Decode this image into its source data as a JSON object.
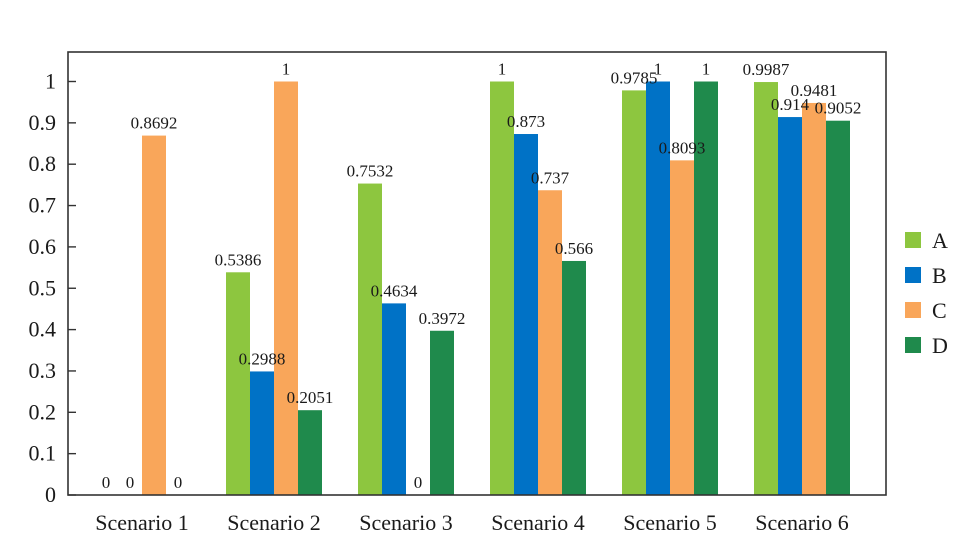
{
  "chart_data": {
    "type": "bar",
    "categories": [
      "Scenario 1",
      "Scenario 2",
      "Scenario 3",
      "Scenario 4",
      "Scenario 5",
      "Scenario 6"
    ],
    "series": [
      {
        "name": "A",
        "color": "#8dc63f",
        "values": [
          0,
          0.5386,
          0.7532,
          1,
          0.9785,
          0.9987
        ],
        "labels": [
          "0",
          "0.5386",
          "0.7532",
          "1",
          "0.9785",
          "0.9987"
        ]
      },
      {
        "name": "B",
        "color": "#0072c6",
        "values": [
          0,
          0.2988,
          0.4634,
          0.873,
          1,
          0.914
        ],
        "labels": [
          "0",
          "0.2988",
          "0.4634",
          "0.873",
          "1",
          "0.914"
        ]
      },
      {
        "name": "C",
        "color": "#f9a65a",
        "values": [
          0.8692,
          1,
          0,
          0.737,
          0.8093,
          0.9481
        ],
        "labels": [
          "0.8692",
          "1",
          "0",
          "0.737",
          "0.8093",
          "0.9481"
        ]
      },
      {
        "name": "D",
        "color": "#1f8a4c",
        "values": [
          0,
          0.2051,
          0.3972,
          0.566,
          1,
          0.9052
        ],
        "labels": [
          "0",
          "0.2051",
          "0.3972",
          "0.566",
          "1",
          "0.9052"
        ]
      }
    ],
    "yticks": [
      "0",
      "0.1",
      "0.2",
      "0.3",
      "0.4",
      "0.5",
      "0.6",
      "0.7",
      "0.8",
      "0.9",
      "1"
    ],
    "ylim": [
      0,
      1.1
    ],
    "title": "",
    "xlabel": "",
    "ylabel": "",
    "legend": "right",
    "grid": false
  }
}
